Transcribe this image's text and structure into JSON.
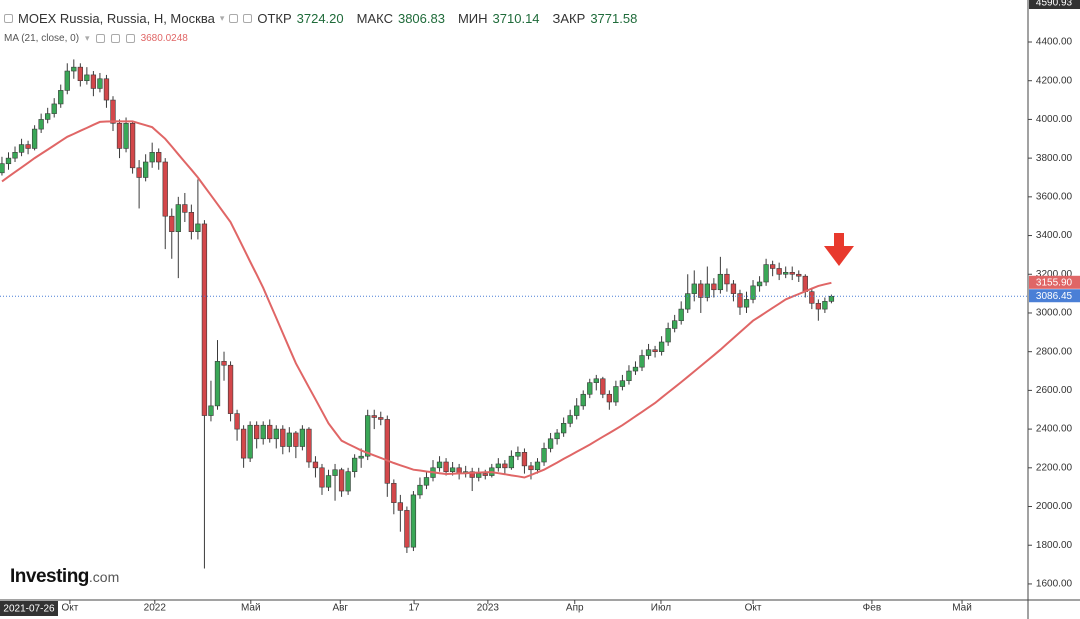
{
  "chart_data": {
    "type": "candlestick",
    "title": "MOEX Russia, Russia, Н, Москва",
    "header": {
      "open_label": "ОТКР",
      "open": "3724.20",
      "high_label": "МАКС",
      "high": "3806.83",
      "low_label": "МИН",
      "low": "3710.14",
      "close_label": "ЗАКР",
      "close": "3771.58"
    },
    "crosshair_date": "2021-07-26",
    "crosshair_price": "4590.93",
    "up_color": "#3aa757",
    "down_color": "#d3474a",
    "ohlc": [
      [
        3724.2,
        3806.83,
        3710.14,
        3771.58
      ],
      [
        3771,
        3830,
        3740,
        3800
      ],
      [
        3800,
        3860,
        3780,
        3830
      ],
      [
        3830,
        3900,
        3810,
        3870
      ],
      [
        3870,
        3890,
        3820,
        3850
      ],
      [
        3850,
        3970,
        3840,
        3950
      ],
      [
        3950,
        4030,
        3930,
        4000
      ],
      [
        4000,
        4060,
        3980,
        4030
      ],
      [
        4030,
        4110,
        4010,
        4080
      ],
      [
        4080,
        4180,
        4060,
        4150
      ],
      [
        4150,
        4290,
        4130,
        4250
      ],
      [
        4250,
        4310,
        4210,
        4270
      ],
      [
        4270,
        4290,
        4170,
        4200
      ],
      [
        4200,
        4270,
        4180,
        4230
      ],
      [
        4230,
        4250,
        4120,
        4160
      ],
      [
        4160,
        4240,
        4140,
        4210
      ],
      [
        4210,
        4230,
        4060,
        4100
      ],
      [
        4100,
        4120,
        3940,
        3980
      ],
      [
        3980,
        4000,
        3800,
        3850
      ],
      [
        3850,
        4010,
        3830,
        3980
      ],
      [
        3980,
        3990,
        3720,
        3750
      ],
      [
        3750,
        3790,
        3540,
        3700
      ],
      [
        3700,
        3820,
        3680,
        3780
      ],
      [
        3780,
        3880,
        3750,
        3830
      ],
      [
        3830,
        3850,
        3740,
        3780
      ],
      [
        3780,
        3800,
        3330,
        3500
      ],
      [
        3500,
        3540,
        3280,
        3420
      ],
      [
        3420,
        3600,
        3180,
        3560
      ],
      [
        3560,
        3620,
        3470,
        3520
      ],
      [
        3520,
        3560,
        3380,
        3420
      ],
      [
        3420,
        3690,
        3380,
        3460
      ],
      [
        3460,
        3480,
        1680,
        2470
      ],
      [
        2470,
        2650,
        2440,
        2520
      ],
      [
        2520,
        2860,
        2500,
        2750
      ],
      [
        2750,
        2800,
        2650,
        2730
      ],
      [
        2730,
        2750,
        2440,
        2480
      ],
      [
        2480,
        2500,
        2340,
        2400
      ],
      [
        2400,
        2420,
        2200,
        2250
      ],
      [
        2250,
        2440,
        2230,
        2420
      ],
      [
        2420,
        2440,
        2300,
        2350
      ],
      [
        2350,
        2440,
        2320,
        2420
      ],
      [
        2420,
        2450,
        2330,
        2350
      ],
      [
        2350,
        2420,
        2300,
        2400
      ],
      [
        2400,
        2420,
        2270,
        2310
      ],
      [
        2310,
        2410,
        2280,
        2380
      ],
      [
        2380,
        2390,
        2250,
        2310
      ],
      [
        2310,
        2420,
        2290,
        2400
      ],
      [
        2400,
        2410,
        2200,
        2230
      ],
      [
        2230,
        2260,
        2150,
        2200
      ],
      [
        2200,
        2220,
        2060,
        2100
      ],
      [
        2100,
        2190,
        2080,
        2160
      ],
      [
        2160,
        2220,
        2030,
        2190
      ],
      [
        2190,
        2200,
        2050,
        2080
      ],
      [
        2080,
        2200,
        2060,
        2180
      ],
      [
        2180,
        2270,
        2150,
        2250
      ],
      [
        2250,
        2300,
        2200,
        2260
      ],
      [
        2260,
        2500,
        2240,
        2470
      ],
      [
        2470,
        2500,
        2400,
        2460
      ],
      [
        2460,
        2490,
        2420,
        2450
      ],
      [
        2450,
        2470,
        2050,
        2120
      ],
      [
        2120,
        2140,
        1960,
        2020
      ],
      [
        2020,
        2060,
        1870,
        1980
      ],
      [
        1980,
        2000,
        1760,
        1790
      ],
      [
        1790,
        2080,
        1770,
        2060
      ],
      [
        2060,
        2150,
        2040,
        2110
      ],
      [
        2110,
        2180,
        2090,
        2150
      ],
      [
        2150,
        2240,
        2130,
        2200
      ],
      [
        2200,
        2260,
        2180,
        2230
      ],
      [
        2230,
        2250,
        2160,
        2180
      ],
      [
        2180,
        2230,
        2160,
        2200
      ],
      [
        2200,
        2220,
        2140,
        2170
      ],
      [
        2170,
        2210,
        2150,
        2180
      ],
      [
        2180,
        2200,
        2080,
        2150
      ],
      [
        2150,
        2200,
        2130,
        2170
      ],
      [
        2170,
        2190,
        2140,
        2160
      ],
      [
        2160,
        2220,
        2150,
        2200
      ],
      [
        2200,
        2250,
        2180,
        2220
      ],
      [
        2220,
        2240,
        2170,
        2200
      ],
      [
        2200,
        2290,
        2190,
        2260
      ],
      [
        2260,
        2310,
        2240,
        2280
      ],
      [
        2280,
        2300,
        2170,
        2210
      ],
      [
        2210,
        2230,
        2140,
        2190
      ],
      [
        2190,
        2250,
        2170,
        2230
      ],
      [
        2230,
        2330,
        2210,
        2300
      ],
      [
        2300,
        2380,
        2280,
        2350
      ],
      [
        2350,
        2400,
        2320,
        2380
      ],
      [
        2380,
        2460,
        2360,
        2430
      ],
      [
        2430,
        2500,
        2410,
        2470
      ],
      [
        2470,
        2560,
        2450,
        2520
      ],
      [
        2520,
        2600,
        2500,
        2580
      ],
      [
        2580,
        2660,
        2560,
        2640
      ],
      [
        2640,
        2680,
        2600,
        2660
      ],
      [
        2660,
        2670,
        2560,
        2580
      ],
      [
        2580,
        2600,
        2500,
        2540
      ],
      [
        2540,
        2650,
        2520,
        2620
      ],
      [
        2620,
        2680,
        2600,
        2650
      ],
      [
        2650,
        2730,
        2630,
        2700
      ],
      [
        2700,
        2750,
        2680,
        2720
      ],
      [
        2720,
        2810,
        2700,
        2780
      ],
      [
        2780,
        2840,
        2760,
        2810
      ],
      [
        2810,
        2830,
        2770,
        2800
      ],
      [
        2800,
        2880,
        2780,
        2850
      ],
      [
        2850,
        2950,
        2830,
        2920
      ],
      [
        2920,
        2990,
        2900,
        2960
      ],
      [
        2960,
        3060,
        2940,
        3020
      ],
      [
        3020,
        3200,
        3000,
        3100
      ],
      [
        3100,
        3220,
        3060,
        3150
      ],
      [
        3150,
        3170,
        3000,
        3080
      ],
      [
        3080,
        3240,
        3060,
        3150
      ],
      [
        3150,
        3180,
        3080,
        3120
      ],
      [
        3120,
        3290,
        3100,
        3200
      ],
      [
        3200,
        3230,
        3110,
        3150
      ],
      [
        3150,
        3170,
        3060,
        3100
      ],
      [
        3100,
        3120,
        2990,
        3030
      ],
      [
        3030,
        3110,
        3000,
        3070
      ],
      [
        3070,
        3170,
        3050,
        3140
      ],
      [
        3140,
        3190,
        3110,
        3160
      ],
      [
        3160,
        3280,
        3140,
        3250
      ],
      [
        3250,
        3270,
        3190,
        3230
      ],
      [
        3230,
        3260,
        3170,
        3200
      ],
      [
        3200,
        3240,
        3180,
        3210
      ],
      [
        3210,
        3240,
        3170,
        3200
      ],
      [
        3200,
        3220,
        3160,
        3190
      ],
      [
        3190,
        3200,
        3080,
        3110
      ],
      [
        3110,
        3130,
        3020,
        3050
      ],
      [
        3050,
        3070,
        2960,
        3020
      ],
      [
        3020,
        3080,
        3000,
        3060
      ],
      [
        3060,
        3095,
        3050,
        3086.45
      ]
    ],
    "price_label": "3086.45",
    "price_label_color": "#4a7fd6",
    "series": [
      {
        "name": "MA (21, close, 0)",
        "color": "#e06666",
        "value_label": "3680.0248",
        "last_label": "3155.90",
        "values": [
          3680.0248,
          3704,
          3728,
          3752,
          3776,
          3800,
          3822,
          3844,
          3866,
          3888,
          3910,
          3925,
          3941,
          3956,
          3972,
          3987,
          3989,
          3990,
          3990,
          3990,
          3990,
          3980,
          3970,
          3960,
          3930,
          3900,
          3860,
          3820,
          3780,
          3740,
          3700,
          3654,
          3608,
          3562,
          3516,
          3470,
          3402,
          3334,
          3266,
          3198,
          3130,
          3052,
          2974,
          2896,
          2818,
          2740,
          2678,
          2616,
          2554,
          2492,
          2430,
          2385,
          2340,
          2323,
          2307,
          2290,
          2277,
          2264,
          2251,
          2238,
          2225,
          2213,
          2202,
          2190,
          2186,
          2181,
          2177,
          2172,
          2168,
          2169,
          2171,
          2172,
          2174,
          2175,
          2177,
          2178,
          2172,
          2167,
          2161,
          2156,
          2150,
          2163,
          2177,
          2190,
          2209,
          2227,
          2246,
          2264,
          2283,
          2301,
          2320,
          2340,
          2360,
          2380,
          2400,
          2420,
          2443,
          2466,
          2489,
          2512,
          2535,
          2562,
          2589,
          2616,
          2643,
          2670,
          2698,
          2726,
          2754,
          2782,
          2810,
          2840,
          2870,
          2900,
          2930,
          2960,
          2982,
          3004,
          3026,
          3048,
          3070,
          3084,
          3098,
          3112,
          3126,
          3140,
          3148,
          3155.9
        ]
      }
    ],
    "xlim": [
      -0.3,
      157.1
    ],
    "xticks": [
      {
        "value": 10.4,
        "label": "Окт"
      },
      {
        "value": 23.4,
        "label": "2022"
      },
      {
        "value": 38.1,
        "label": "Май"
      },
      {
        "value": 51.8,
        "label": "Авг"
      },
      {
        "value": 63.1,
        "label": "17"
      },
      {
        "value": 74.4,
        "label": "2023"
      },
      {
        "value": 87.7,
        "label": "Апр"
      },
      {
        "value": 100.9,
        "label": "Июл"
      },
      {
        "value": 115.0,
        "label": "Окт"
      },
      {
        "value": 133.2,
        "label": "Фев"
      },
      {
        "value": 147.0,
        "label": "Май"
      }
    ],
    "ylim": [
      1517,
      4617
    ],
    "yticks": [
      {
        "value": 1600,
        "label": "1600.00"
      },
      {
        "value": 1800,
        "label": "1800.00"
      },
      {
        "value": 2000,
        "label": "2000.00"
      },
      {
        "value": 2200,
        "label": "2200.00"
      },
      {
        "value": 2400,
        "label": "2400.00"
      },
      {
        "value": 2600,
        "label": "2600.00"
      },
      {
        "value": 2800,
        "label": "2800.00"
      },
      {
        "value": 3000,
        "label": "3000.00"
      },
      {
        "value": 3200,
        "label": "3200.00"
      },
      {
        "value": 3400,
        "label": "3400.00"
      },
      {
        "value": 3600,
        "label": "3600.00"
      },
      {
        "value": 3800,
        "label": "3800.00"
      },
      {
        "value": 4000,
        "label": "4000.00"
      },
      {
        "value": 4200,
        "label": "4200.00"
      },
      {
        "value": 4400,
        "label": "4400.00"
      }
    ],
    "grid": false,
    "logo": {
      "brand": "Investing",
      "suffix": ".com"
    }
  }
}
